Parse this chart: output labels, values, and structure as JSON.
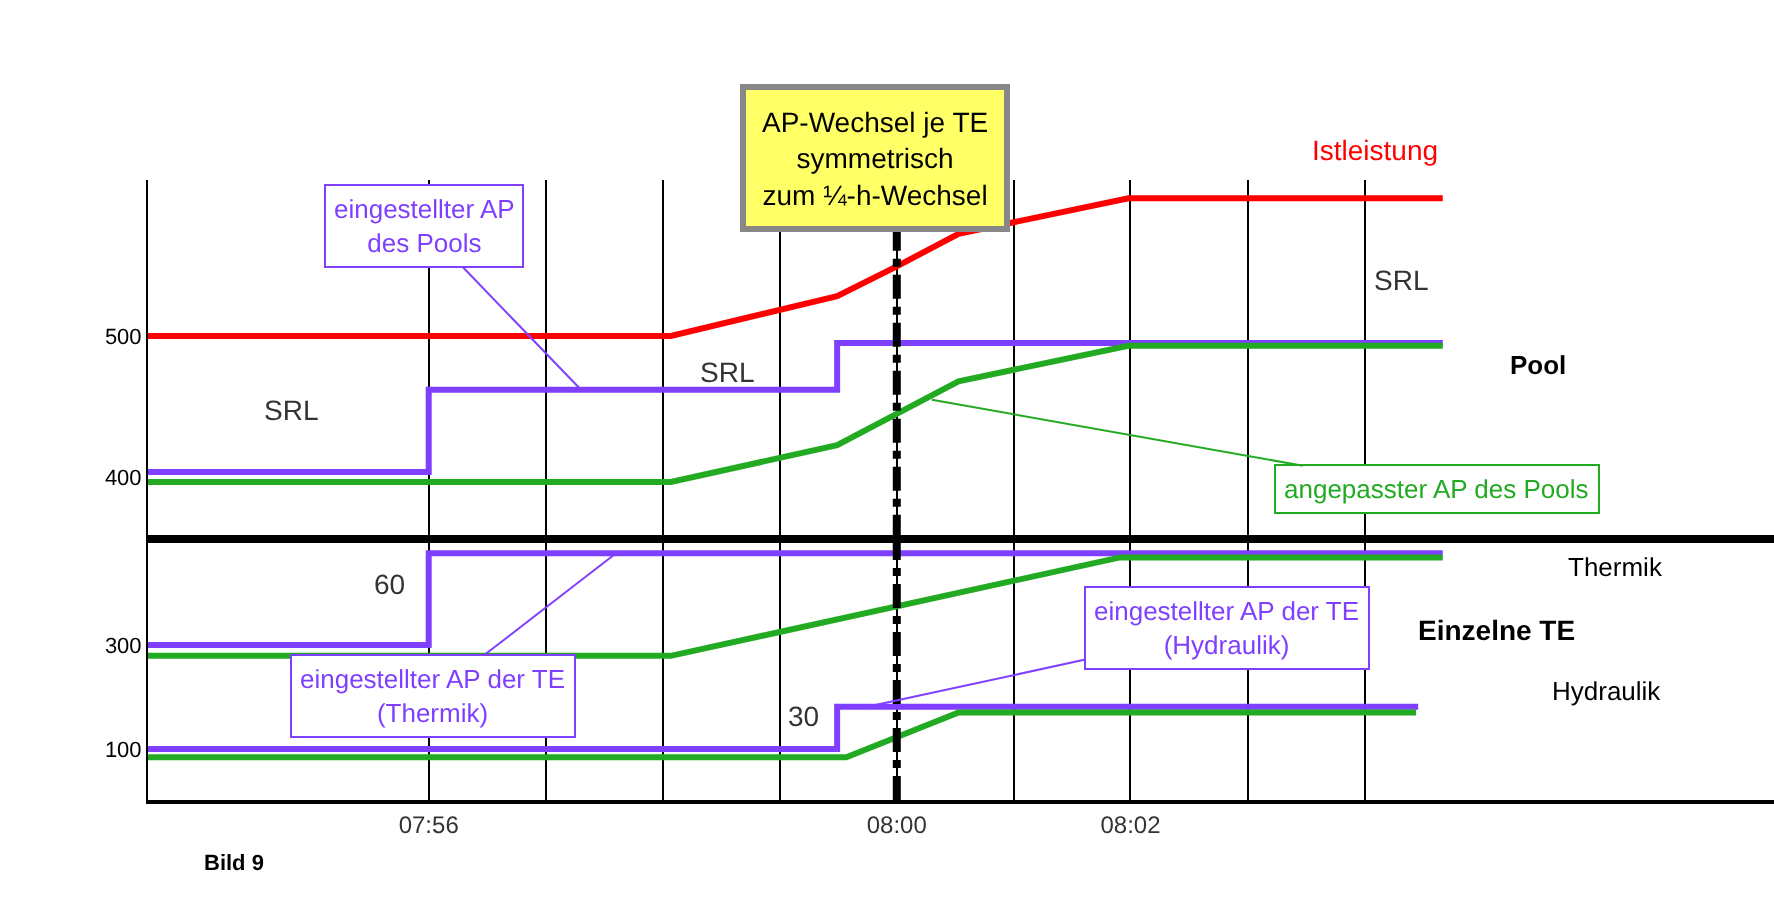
{
  "chart_data": [
    {
      "type": "line",
      "title": "AP-Wechsel je TE\nsymmetrisch\nzum ¼-h-Wechsel",
      "series": [
        {
          "name": "Istleistung",
          "color": "#ff0000",
          "x": [
            7.8933,
            7.9678,
            7.9915,
            8.0,
            8.0088,
            8.033,
            8.0778
          ],
          "values": [
            500,
            500,
            528,
            549,
            572,
            597,
            597
          ]
        },
        {
          "color": "#7f3fff",
          "type": "step",
          "x": [
            7.8933,
            7.9333,
            7.9915,
            8.0778
          ],
          "values": [
            404,
            462,
            495,
            495
          ]
        },
        {
          "color": "#22aa22",
          "x": [
            7.8933,
            7.9678,
            7.9915,
            8.0088,
            8.033,
            8.0778
          ],
          "values": [
            397,
            397,
            423,
            468,
            493,
            493
          ]
        }
      ],
      "xlim": [
        7.8933,
        8.125
      ],
      "ylim": [
        357,
        610
      ],
      "xticks": [
        {
          "value": 7.9333,
          "label": null
        },
        {
          "value": 7.95,
          "label": null
        },
        {
          "value": 7.9667,
          "label": null
        },
        {
          "value": 7.9833,
          "label": null
        },
        {
          "value": 8.0,
          "label": null
        },
        {
          "value": 8.0167,
          "label": null
        },
        {
          "value": 8.0333,
          "label": null
        },
        {
          "value": 8.05,
          "label": null
        },
        {
          "value": 8.0667,
          "label": null
        }
      ],
      "yticks": [
        400,
        500
      ],
      "tick_labels": "y",
      "grid": "x",
      "legend": false,
      "ref_lines": [
        {
          "axis": "x",
          "value": 8.0,
          "color": "#000000",
          "line_style": "dashdot"
        }
      ],
      "annotations": [
        {
          "text": "eingestellter AP\ndes Pools",
          "x": 7.955,
          "y": 462
        },
        "SRL",
        {
          "text": "SRL",
          "x": 7.9758,
          "y": 462
        },
        "SRL",
        {
          "text": "angepasster AP des Pools",
          "x": 8.005,
          "y": 455
        },
        "Pool"
      ]
    },
    {
      "type": "line",
      "series": [
        {
          "color": "#7f3fff",
          "type": "step",
          "x": [
            7.8933,
            7.9333,
            8.0778
          ],
          "values": [
            300,
            476,
            476
          ]
        },
        {
          "color": "#22aa22",
          "x": [
            7.8933,
            7.9678,
            8.0318,
            8.0778
          ],
          "values": [
            279,
            279,
            468,
            468
          ]
        },
        {
          "color": "#7f3fff",
          "type": "step",
          "x": [
            7.8933,
            7.9915,
            8.0743
          ],
          "values": [
            100,
            181,
            181
          ]
        },
        {
          "color": "#22aa22",
          "x": [
            7.8933,
            7.9928,
            8.0088,
            8.074
          ],
          "values": [
            84,
            84,
            170,
            170
          ]
        }
      ],
      "xlim": [
        7.8933,
        8.125
      ],
      "ylim": [
        2,
        504
      ],
      "xticks": [
        {
          "value": 7.9333,
          "label": "07:56"
        },
        {
          "value": 7.95,
          "label": null
        },
        {
          "value": 7.9667,
          "label": null
        },
        {
          "value": 7.9833,
          "label": null
        },
        {
          "value": 8.0,
          "label": "08:00"
        },
        {
          "value": 8.0167,
          "label": null
        },
        {
          "value": 8.0333,
          "label": "08:02"
        },
        {
          "value": 8.05,
          "label": null
        },
        {
          "value": 8.0667,
          "label": null
        }
      ],
      "yticks": [
        100,
        300
      ],
      "grid": "x",
      "legend": false,
      "ref_lines": [
        {
          "axis": "x",
          "value": 8.0,
          "color": "#000000",
          "line_style": "dashdot"
        }
      ],
      "annotations": [
        "60",
        "30",
        {
          "text": "eingestellter AP der TE\n(Thermik)",
          "x": 7.96,
          "y": 476
        },
        {
          "text": "eingestellter AP der TE\n(Hydraulik)",
          "x": 7.9958,
          "y": 181
        },
        "Thermik",
        "Einzelne TE",
        "Hydraulik",
        "Bild 9"
      ]
    }
  ]
}
